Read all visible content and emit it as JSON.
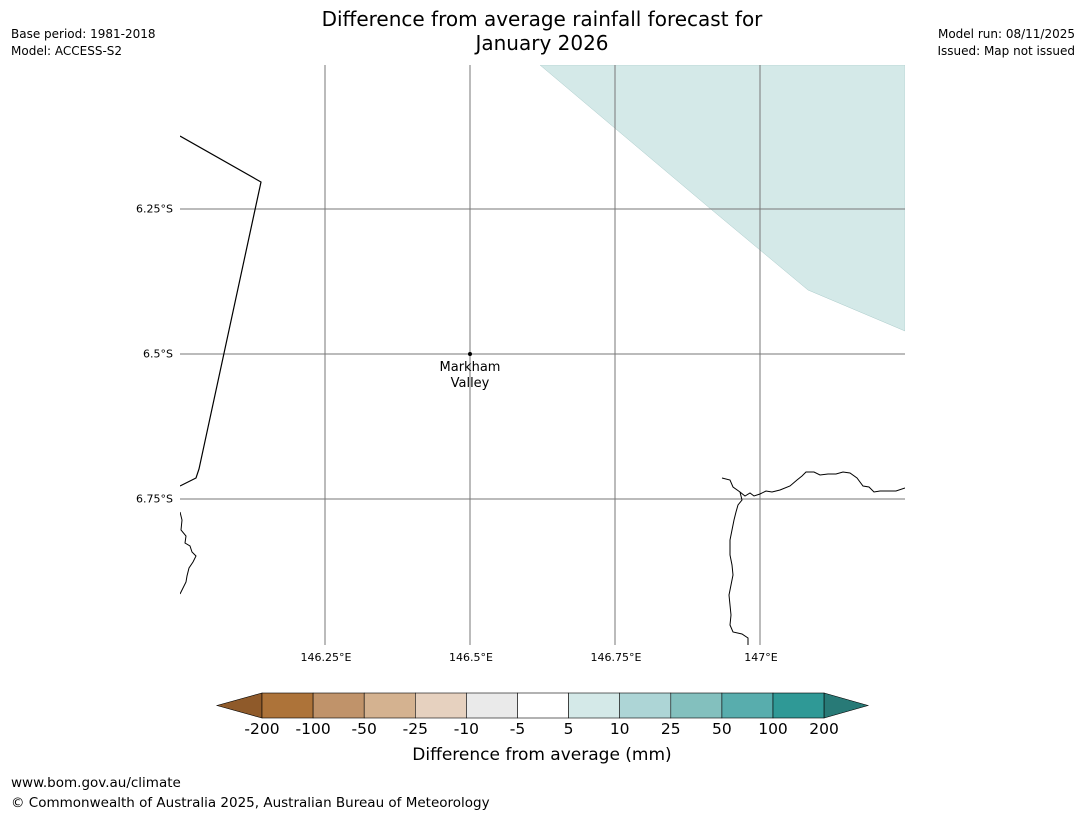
{
  "header": {
    "base_period": "Base period: 1981-2018",
    "model": "Model: ACCESS-S2",
    "model_run": "Model run: 08/11/2025",
    "issued": "Issued: Map not issued",
    "title_line1": "Difference from average rainfall forecast for",
    "title_line2": "January 2026"
  },
  "map": {
    "lat_labels": [
      "6.25°S",
      "6.5°S",
      "6.75°S"
    ],
    "lon_labels": [
      "146.25°E",
      "146.5°E",
      "146.75°E",
      "147°E"
    ],
    "place": {
      "name_line1": "Markham",
      "name_line2": "Valley",
      "lat": -6.5,
      "lon": 146.5
    },
    "shaded_category": "5 to 10",
    "colors": {
      "shade": "#d4e9e8",
      "grid": "#777777",
      "coast": "#000000"
    }
  },
  "colorbar": {
    "title": "Difference from average (mm)",
    "ticks": [
      "-200",
      "-100",
      "-50",
      "-25",
      "-10",
      "-5",
      "5",
      "10",
      "25",
      "50",
      "100",
      "200"
    ],
    "colors": [
      "#8f5a2a",
      "#ad7339",
      "#c0936a",
      "#d4b290",
      "#e6d1bf",
      "#eaeaea",
      "#ffffff",
      "#d4e9e8",
      "#add5d6",
      "#83c0be",
      "#58adad",
      "#2f9996",
      "#287a77"
    ]
  },
  "footer": {
    "url": "www.bom.gov.au/climate",
    "copyright": "© Commonwealth of Australia 2025, Australian Bureau of Meteorology"
  }
}
